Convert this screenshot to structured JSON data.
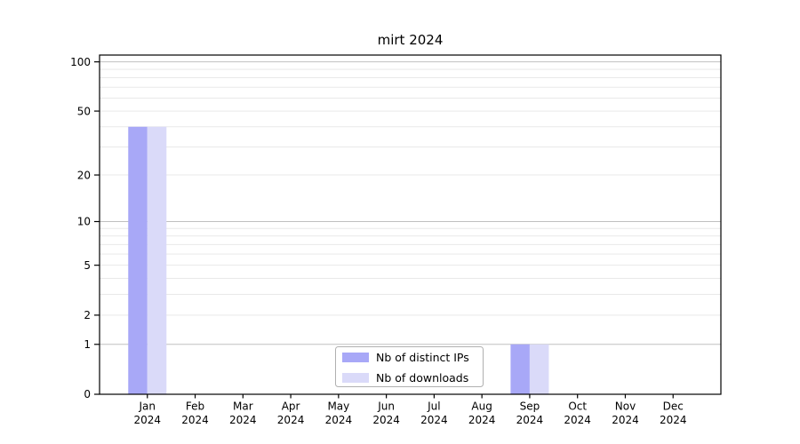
{
  "chart_data": {
    "type": "bar",
    "title": "mirt 2024",
    "categories": [
      "Jan",
      "Feb",
      "Mar",
      "Apr",
      "May",
      "Jun",
      "Jul",
      "Aug",
      "Sep",
      "Oct",
      "Nov",
      "Dec"
    ],
    "category_year": "2024",
    "series": [
      {
        "name": "Nb of distinct IPs",
        "color": "#a8a8f7",
        "values": [
          40,
          0,
          0,
          0,
          0,
          0,
          0,
          0,
          1,
          0,
          0,
          0
        ]
      },
      {
        "name": "Nb of downloads",
        "color": "#dadaf9",
        "values": [
          40,
          0,
          0,
          0,
          0,
          0,
          0,
          0,
          1,
          0,
          0,
          0
        ]
      }
    ],
    "xlabel": "",
    "ylabel": "",
    "yscale": "log1p",
    "ylim": [
      0,
      110
    ],
    "yticks": [
      0,
      1,
      2,
      5,
      10,
      20,
      50,
      100
    ],
    "major_gridlines": [
      1,
      10,
      100
    ],
    "minor_gridlines": [
      2,
      3,
      4,
      5,
      6,
      7,
      8,
      9,
      20,
      30,
      40,
      50,
      60,
      70,
      80,
      90
    ],
    "grid": true,
    "legend": {
      "position": "lower center",
      "entries": [
        "Nb of distinct IPs",
        "Nb of downloads"
      ]
    },
    "colors": {
      "series_distinct_ips": "#a8a8f7",
      "series_downloads": "#dadaf9",
      "major_gridline": "#c0c0c0",
      "minor_gridline": "#e9e9e9",
      "axis_frame": "#000000",
      "legend_border": "#b0b0b0",
      "background": "#ffffff"
    }
  }
}
